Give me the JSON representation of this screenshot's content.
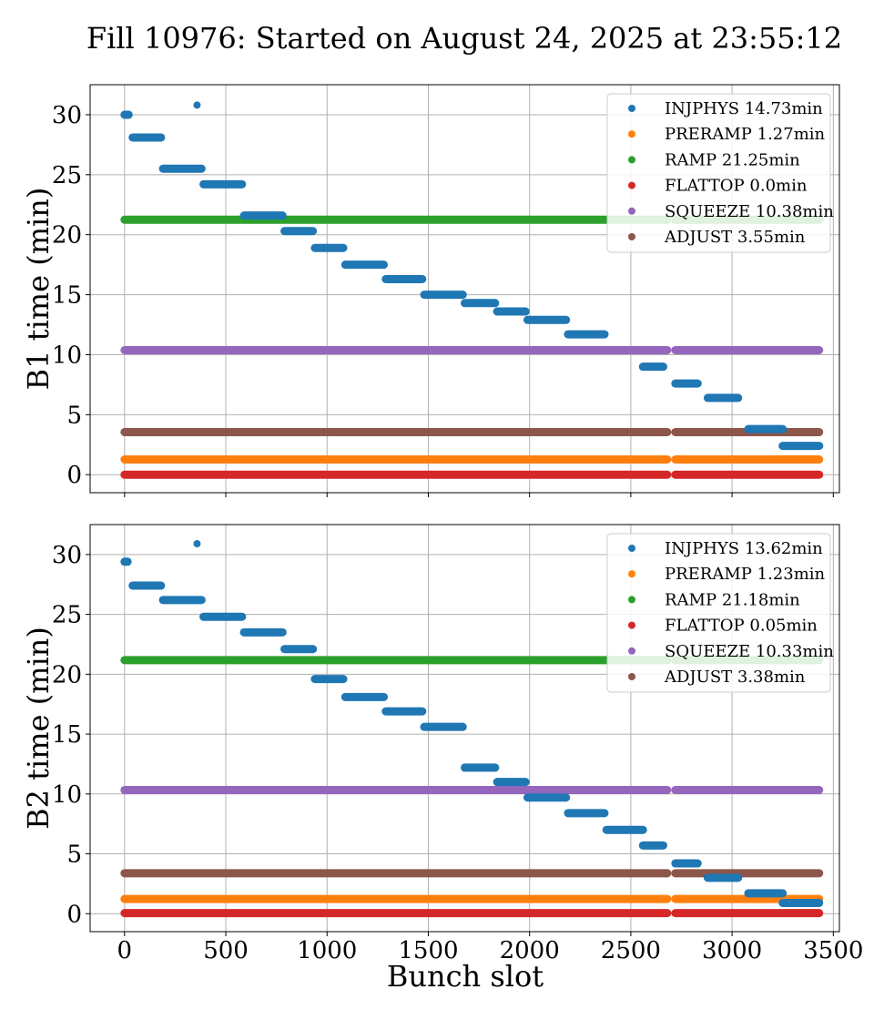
{
  "figure": {
    "title": "Fill 10976: Started on August 24, 2025 at 23:55:12",
    "xlabel": "Bunch slot"
  },
  "chart_data": [
    {
      "type": "scatter",
      "ylabel": "B1 time (min)",
      "xlim": [
        -170,
        3530
      ],
      "ylim": [
        -1.5,
        32.5
      ],
      "xticks": [
        0,
        500,
        1000,
        1500,
        2000,
        2500,
        3000,
        3500
      ],
      "yticks": [
        0,
        5,
        10,
        15,
        20,
        25,
        30
      ],
      "grid": true,
      "legend_position": "upper right",
      "gaps": [
        [
          2680,
          2720
        ]
      ],
      "flat_series": [
        {
          "name": "SQUEEZE 10.38min",
          "color": "#9467bd",
          "y": 10.38,
          "x_range": [
            0,
            3430
          ]
        },
        {
          "name": "RAMP 21.25min",
          "color": "#2ca02c",
          "y": 21.25,
          "x_range": [
            0,
            3430
          ]
        },
        {
          "name": "ADJUST 3.55min",
          "color": "#8c564b",
          "y": 3.55,
          "x_range": [
            0,
            3430
          ]
        },
        {
          "name": "PRERAMP 1.27min",
          "color": "#ff7f0e",
          "y": 1.27,
          "x_range": [
            0,
            3430
          ]
        },
        {
          "name": "FLATTOP 0.0min",
          "color": "#d62728",
          "y": 0.0,
          "x_range": [
            0,
            3430
          ]
        }
      ],
      "injphys": {
        "name": "INJPHYS 14.73min",
        "color": "#1f77b4",
        "segments": [
          [
            0,
            20,
            30.0
          ],
          [
            40,
            180,
            28.1
          ],
          [
            190,
            380,
            25.5
          ],
          [
            390,
            580,
            24.2
          ],
          [
            590,
            780,
            21.6
          ],
          [
            790,
            930,
            20.3
          ],
          [
            940,
            1080,
            18.9
          ],
          [
            1090,
            1280,
            17.5
          ],
          [
            1290,
            1470,
            16.3
          ],
          [
            1480,
            1670,
            15.0
          ],
          [
            1680,
            1830,
            14.3
          ],
          [
            1840,
            1980,
            13.6
          ],
          [
            1990,
            2180,
            12.9
          ],
          [
            2190,
            2370,
            11.7
          ],
          [
            2560,
            2660,
            9.0
          ],
          [
            2720,
            2830,
            7.6
          ],
          [
            2880,
            3030,
            6.4
          ],
          [
            3080,
            3250,
            3.8
          ],
          [
            3250,
            3430,
            2.4
          ]
        ],
        "points": [
          [
            358,
            30.8
          ]
        ]
      }
    },
    {
      "type": "scatter",
      "ylabel": "B2 time (min)",
      "xlim": [
        -170,
        3530
      ],
      "ylim": [
        -1.5,
        32.5
      ],
      "xticks": [
        0,
        500,
        1000,
        1500,
        2000,
        2500,
        3000,
        3500
      ],
      "yticks": [
        0,
        5,
        10,
        15,
        20,
        25,
        30
      ],
      "grid": true,
      "legend_position": "upper right",
      "gaps": [
        [
          2680,
          2720
        ]
      ],
      "flat_series": [
        {
          "name": "SQUEEZE 10.33min",
          "color": "#9467bd",
          "y": 10.33,
          "x_range": [
            0,
            3430
          ]
        },
        {
          "name": "RAMP 21.18min",
          "color": "#2ca02c",
          "y": 21.18,
          "x_range": [
            0,
            3430
          ]
        },
        {
          "name": "ADJUST 3.38min",
          "color": "#8c564b",
          "y": 3.38,
          "x_range": [
            0,
            3430
          ]
        },
        {
          "name": "PRERAMP 1.23min",
          "color": "#ff7f0e",
          "y": 1.23,
          "x_range": [
            0,
            3430
          ]
        },
        {
          "name": "FLATTOP 0.05min",
          "color": "#d62728",
          "y": 0.05,
          "x_range": [
            0,
            3430
          ]
        }
      ],
      "injphys": {
        "name": "INJPHYS 13.62min",
        "color": "#1f77b4",
        "segments": [
          [
            0,
            15,
            29.4
          ],
          [
            40,
            180,
            27.4
          ],
          [
            190,
            380,
            26.2
          ],
          [
            390,
            580,
            24.8
          ],
          [
            590,
            780,
            23.5
          ],
          [
            790,
            930,
            22.1
          ],
          [
            940,
            1080,
            19.6
          ],
          [
            1090,
            1280,
            18.1
          ],
          [
            1290,
            1470,
            16.9
          ],
          [
            1480,
            1670,
            15.6
          ],
          [
            1680,
            1830,
            12.2
          ],
          [
            1840,
            1980,
            11.0
          ],
          [
            1990,
            2180,
            9.7
          ],
          [
            2190,
            2370,
            8.4
          ],
          [
            2380,
            2560,
            7.0
          ],
          [
            2560,
            2660,
            5.7
          ],
          [
            2720,
            2830,
            4.2
          ],
          [
            2880,
            3030,
            3.0
          ],
          [
            3080,
            3250,
            1.7
          ],
          [
            3250,
            3430,
            0.9
          ]
        ],
        "points": [
          [
            358,
            30.9
          ]
        ]
      }
    }
  ],
  "legend_order": [
    "INJPHYS",
    "PRERAMP",
    "RAMP",
    "FLATTOP",
    "SQUEEZE",
    "ADJUST"
  ]
}
